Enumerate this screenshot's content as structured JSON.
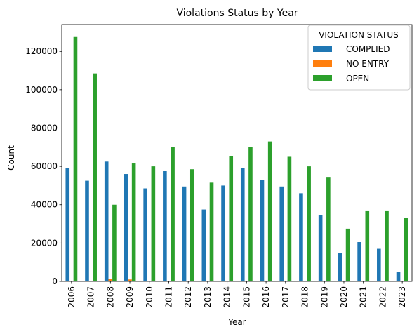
{
  "chart_data": {
    "type": "bar",
    "title": "Violations Status by Year",
    "xlabel": "Year",
    "ylabel": "Count",
    "ylim": [
      0,
      134000
    ],
    "yticks": [
      0,
      20000,
      40000,
      60000,
      80000,
      100000,
      120000
    ],
    "grid": false,
    "legend": {
      "title": "VIOLATION STATUS",
      "placement": "top-right"
    },
    "categories": [
      "2006",
      "2007",
      "2008",
      "2009",
      "2010",
      "2011",
      "2012",
      "2013",
      "2014",
      "2015",
      "2016",
      "2017",
      "2018",
      "2019",
      "2020",
      "2021",
      "2022",
      "2023"
    ],
    "series": [
      {
        "name": "COMPLIED",
        "color": "#1f77b4",
        "values": [
          59000,
          52500,
          62500,
          56000,
          48500,
          57500,
          49500,
          37500,
          50000,
          59000,
          53000,
          49500,
          46000,
          34500,
          15000,
          20500,
          17000,
          5000
        ]
      },
      {
        "name": "NO ENTRY",
        "color": "#ff7f0e",
        "values": [
          100,
          100,
          1400,
          1000,
          100,
          100,
          100,
          100,
          100,
          100,
          100,
          100,
          100,
          100,
          0,
          0,
          0,
          0
        ]
      },
      {
        "name": "OPEN",
        "color": "#2ca02c",
        "values": [
          127500,
          108500,
          40000,
          61500,
          60000,
          70000,
          58500,
          51500,
          65500,
          70000,
          73000,
          65000,
          60000,
          54500,
          27500,
          37000,
          37000,
          33000
        ]
      }
    ]
  }
}
